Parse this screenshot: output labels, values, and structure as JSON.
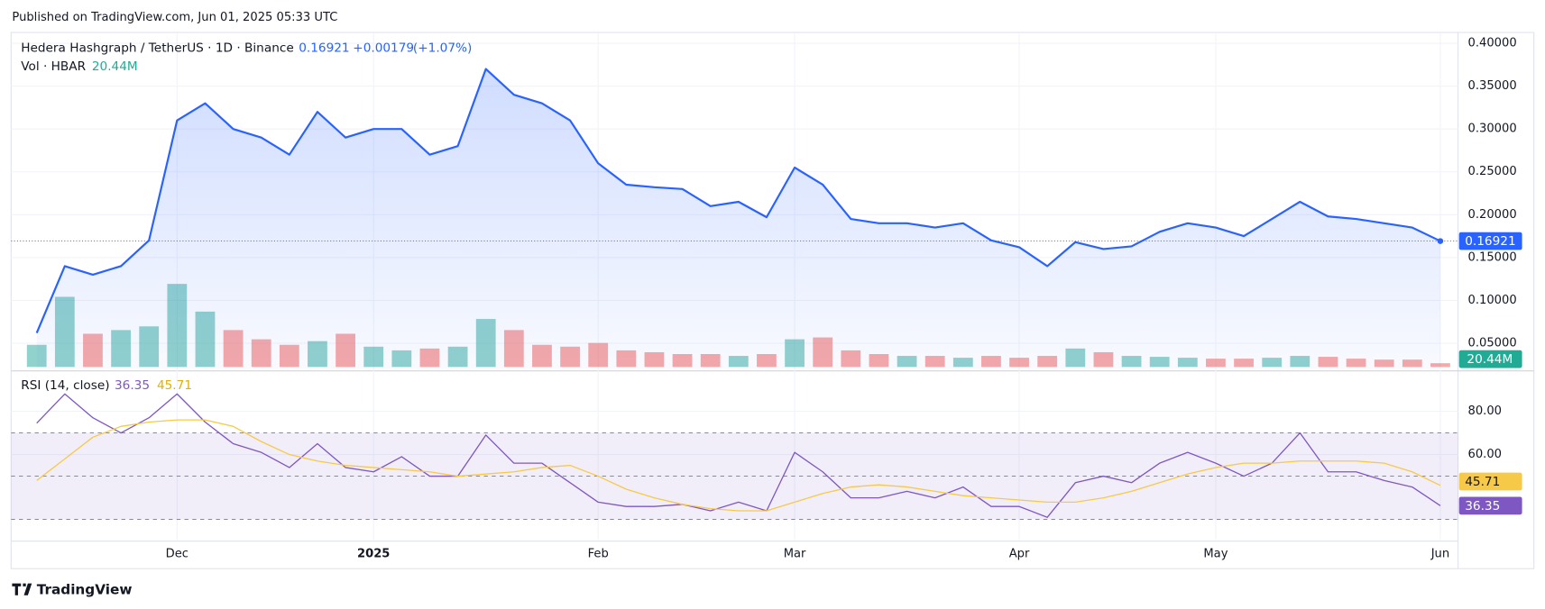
{
  "header": {
    "published": "Published on TradingView.com, Jun 01, 2025 05:33 UTC"
  },
  "footer": {
    "brand": "TradingView"
  },
  "chart_data": [
    {
      "type": "line",
      "title": "Hedera Hashgraph / TetherUS · 1D · Binance",
      "change": "+0.00179",
      "change_pct": "(+1.07%)",
      "color": "#2962ff",
      "area": true,
      "values": [
        0.062,
        0.14,
        0.13,
        0.14,
        0.17,
        0.31,
        0.33,
        0.3,
        0.29,
        0.27,
        0.32,
        0.29,
        0.3,
        0.3,
        0.27,
        0.28,
        0.37,
        0.34,
        0.33,
        0.31,
        0.26,
        0.235,
        0.232,
        0.23,
        0.21,
        0.215,
        0.197,
        0.255,
        0.235,
        0.195,
        0.19,
        0.19,
        0.185,
        0.19,
        0.17,
        0.162,
        0.14,
        0.168,
        0.16,
        0.163,
        0.18,
        0.19,
        0.185,
        0.175,
        0.195,
        0.215,
        0.198,
        0.195,
        0.19,
        0.185,
        0.16921
      ],
      "ylim": [
        0.02,
        0.41
      ],
      "yticks": [
        {
          "value": 0.05,
          "label": "0.05000"
        },
        {
          "value": 0.1,
          "label": "0.10000"
        },
        {
          "value": 0.15,
          "label": "0.15000"
        },
        {
          "value": 0.2,
          "label": "0.20000"
        },
        {
          "value": 0.25,
          "label": "0.25000"
        },
        {
          "value": 0.3,
          "label": "0.30000"
        },
        {
          "value": 0.35,
          "label": "0.35000"
        },
        {
          "value": 0.4,
          "label": "0.40000"
        }
      ],
      "grid": true
    },
    {
      "type": "bar",
      "title": "Vol · HBAR",
      "up_color": "rgba(38,166,154,0.5)",
      "down_color": "rgba(239,83,80,0.5)",
      "tag_color": "#22ab94",
      "values": [
        120000000,
        380000000,
        180000000,
        200000000,
        220000000,
        450000000,
        300000000,
        200000000,
        150000000,
        120000000,
        140000000,
        180000000,
        110000000,
        90000000,
        100000000,
        110000000,
        260000000,
        200000000,
        120000000,
        110000000,
        130000000,
        90000000,
        80000000,
        70000000,
        70000000,
        60000000,
        70000000,
        150000000,
        160000000,
        90000000,
        70000000,
        60000000,
        60000000,
        50000000,
        60000000,
        50000000,
        60000000,
        100000000,
        80000000,
        60000000,
        55000000,
        50000000,
        45000000,
        45000000,
        50000000,
        60000000,
        55000000,
        45000000,
        40000000,
        40000000,
        20440000
      ],
      "value_labels": [
        null,
        null,
        null,
        null,
        null,
        null,
        null,
        null,
        null,
        null,
        null,
        null,
        null,
        null,
        null,
        null,
        null,
        null,
        null,
        null,
        null,
        null,
        null,
        null,
        null,
        null,
        null,
        null,
        null,
        null,
        null,
        null,
        null,
        null,
        null,
        null,
        null,
        null,
        null,
        null,
        null,
        null,
        null,
        null,
        null,
        null,
        null,
        null,
        null,
        null,
        "20.44M"
      ],
      "ylim": [
        0,
        1800000000
      ]
    },
    {
      "type": "line",
      "title": "RSI (14, close)",
      "levels": [
        30,
        50,
        70
      ],
      "categories": [
        null,
        null,
        null,
        null,
        null,
        "Dec",
        null,
        null,
        null,
        null,
        null,
        null,
        "2025",
        null,
        null,
        null,
        null,
        null,
        null,
        null,
        "Feb",
        null,
        null,
        null,
        null,
        null,
        null,
        "Mar",
        null,
        null,
        null,
        null,
        null,
        null,
        null,
        "Apr",
        null,
        null,
        null,
        null,
        null,
        null,
        "May",
        null,
        null,
        null,
        null,
        null,
        null,
        null,
        "Jun"
      ],
      "series": [
        {
          "color": "#7e57c2",
          "values": [
            74.5,
            88,
            77,
            70,
            77,
            88,
            75,
            65,
            61,
            54,
            65,
            54,
            52,
            59,
            50,
            50,
            69,
            56,
            56,
            47,
            38,
            36,
            36,
            37,
            34,
            38,
            34,
            61,
            52,
            40,
            40,
            43,
            40,
            45,
            36,
            36,
            31,
            47,
            50,
            47,
            56,
            61,
            56,
            50,
            56,
            70,
            52,
            52,
            48,
            45,
            36.35
          ]
        },
        {
          "color": "#f7c948",
          "values": [
            48,
            58,
            68,
            73,
            75,
            76,
            76,
            73,
            66,
            60,
            57,
            55,
            54,
            53,
            52,
            50,
            51,
            52,
            54,
            55,
            50,
            44,
            40,
            37,
            35,
            34,
            34,
            38,
            42,
            45,
            46,
            45,
            43,
            41,
            40,
            39,
            38,
            38,
            40,
            43,
            47,
            51,
            54,
            56,
            56,
            57,
            57,
            57,
            56,
            52,
            45.71
          ]
        }
      ],
      "ylim": [
        21,
        98
      ],
      "yticks": [
        {
          "value": 60,
          "label": "60.00"
        },
        {
          "value": 80,
          "label": "80.00"
        }
      ],
      "grid": true
    }
  ]
}
